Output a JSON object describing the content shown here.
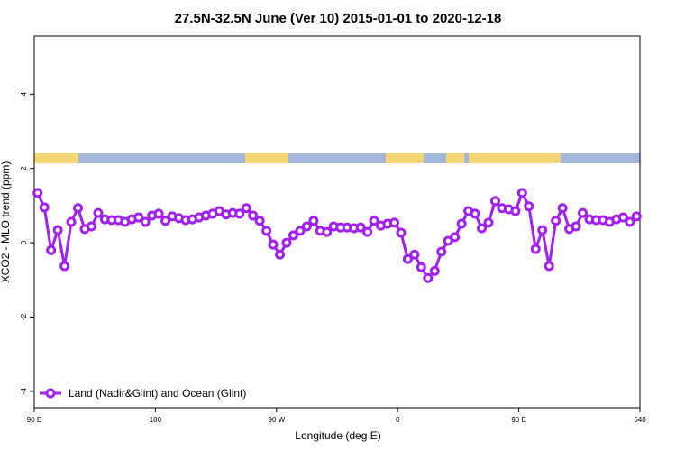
{
  "chart_data": {
    "type": "line",
    "title": "27.5N-32.5N June (Ver 10)   2015-01-01 to 2020-12-18",
    "x_label": "Longitude (deg E)",
    "y_label": "XCO2 - MLO trend (ppm)",
    "x": [
      92.5,
      97.5,
      102.5,
      107.5,
      112.5,
      117.5,
      122.5,
      127.5,
      132.5,
      137.5,
      142.5,
      147.5,
      152.5,
      157.5,
      162.5,
      167.5,
      172.5,
      177.5,
      182.5,
      187.5,
      192.5,
      197.5,
      202.5,
      207.5,
      212.5,
      217.5,
      222.5,
      227.5,
      232.5,
      237.5,
      242.5,
      247.5,
      252.5,
      257.5,
      262.5,
      267.5,
      272.5,
      277.5,
      282.5,
      287.5,
      292.5,
      297.5,
      302.5,
      307.5,
      312.5,
      317.5,
      322.5,
      327.5,
      332.5,
      337.5,
      342.5,
      347.5,
      352.5,
      357.5,
      362.5,
      367.5,
      372.5,
      377.5,
      382.5,
      387.5,
      392.5,
      397.5,
      402.5,
      407.5,
      412.5,
      417.5,
      422.5,
      427.5,
      432.5,
      437.5,
      442.5,
      447.5,
      452.5,
      457.5,
      462.5,
      467.5,
      472.5,
      477.5,
      482.5,
      487.5,
      492.5,
      497.5,
      502.5,
      507.5,
      512.5,
      517.5,
      522.5,
      527.5,
      532.5,
      537.5
    ],
    "series": [
      {
        "name": "Land (Nadir&Glint) and Ocean (Glint)",
        "color": "#a020f0",
        "values": [
          1.34,
          0.95,
          -0.2,
          0.34,
          -0.63,
          0.56,
          0.93,
          0.37,
          0.44,
          0.8,
          0.63,
          0.61,
          0.61,
          0.56,
          0.63,
          0.68,
          0.56,
          0.73,
          0.78,
          0.59,
          0.71,
          0.66,
          0.61,
          0.63,
          0.68,
          0.73,
          0.78,
          0.85,
          0.76,
          0.8,
          0.78,
          0.93,
          0.73,
          0.59,
          0.32,
          -0.05,
          -0.32,
          0,
          0.2,
          0.32,
          0.44,
          0.59,
          0.32,
          0.29,
          0.44,
          0.41,
          0.41,
          0.39,
          0.41,
          0.29,
          0.59,
          0.46,
          0.51,
          0.54,
          0.27,
          -0.44,
          -0.32,
          -0.66,
          -0.95,
          -0.76,
          -0.24,
          0.05,
          0.15,
          0.51,
          0.85,
          0.78,
          0.39,
          0.54,
          1.12,
          0.93,
          0.9,
          0.85,
          1.34,
          0.98,
          -0.17,
          0.34,
          -0.63,
          0.59,
          0.93,
          0.37,
          0.44,
          0.8,
          0.63,
          0.61,
          0.61,
          0.56,
          0.63,
          0.68,
          0.56,
          0.71
        ]
      }
    ],
    "xlim": [
      90,
      540
    ],
    "xticks": [
      {
        "value": 90,
        "label": "90 E"
      },
      180,
      {
        "value": 270,
        "label": "90 W"
      },
      {
        "value": 360,
        "label": "0"
      },
      {
        "value": 450,
        "label": "90 E"
      },
      540
    ],
    "ylim": [
      -4.44,
      5.56
    ],
    "yticks": [
      -4,
      -2,
      0,
      2,
      4
    ],
    "legend": "bottom-left"
  }
}
